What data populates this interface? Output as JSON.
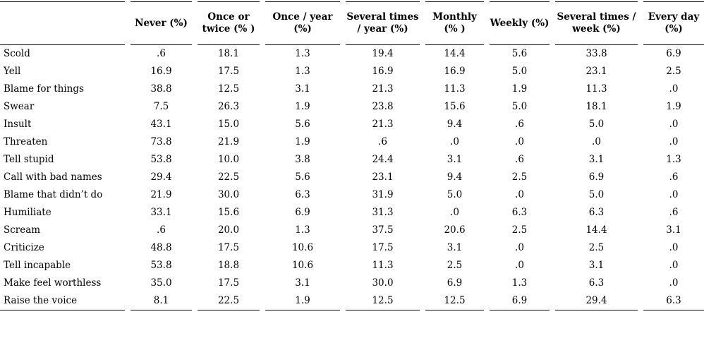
{
  "table": {
    "columns": [
      "",
      "Never (%)",
      "Once or twice (% )",
      "Once / year (%)",
      "Several times / year (%)",
      "Monthly (% )",
      "Weekly (%)",
      "Several times / week (%)",
      "Every day (%)"
    ],
    "rows": [
      {
        "label": "Scold",
        "values": [
          ".6",
          "18.1",
          "1.3",
          "19.4",
          "14.4",
          "5.6",
          "33.8",
          "6.9"
        ]
      },
      {
        "label": "Yell",
        "values": [
          "16.9",
          "17.5",
          "1.3",
          "16.9",
          "16.9",
          "5.0",
          "23.1",
          "2.5"
        ]
      },
      {
        "label": "Blame for things",
        "values": [
          "38.8",
          "12.5",
          "3.1",
          "21.3",
          "11.3",
          "1.9",
          "11.3",
          ".0"
        ]
      },
      {
        "label": "Swear",
        "values": [
          "7.5",
          "26.3",
          "1.9",
          "23.8",
          "15.6",
          "5.0",
          "18.1",
          "1.9"
        ]
      },
      {
        "label": "Insult",
        "values": [
          "43.1",
          "15.0",
          "5.6",
          "21.3",
          "9.4",
          ".6",
          "5.0",
          ".0"
        ]
      },
      {
        "label": "Threaten",
        "values": [
          "73.8",
          "21.9",
          "1.9",
          ".6",
          ".0",
          ".0",
          ".0",
          ".0"
        ]
      },
      {
        "label": "Tell stupid",
        "values": [
          "53.8",
          "10.0",
          "3.8",
          "24.4",
          "3.1",
          ".6",
          "3.1",
          "1.3"
        ]
      },
      {
        "label": "Call with bad names",
        "values": [
          "29.4",
          "22.5",
          "5.6",
          "23.1",
          "9.4",
          "2.5",
          "6.9",
          ".6"
        ]
      },
      {
        "label": "Blame that didn’t do",
        "values": [
          "21.9",
          "30.0",
          "6.3",
          "31.9",
          "5.0",
          ".0",
          "5.0",
          ".0"
        ]
      },
      {
        "label": "Humiliate",
        "values": [
          "33.1",
          "15.6",
          "6.9",
          "31.3",
          ".0",
          "6.3",
          "6.3",
          ".6"
        ]
      },
      {
        "label": "Scream",
        "values": [
          ".6",
          "20.0",
          "1.3",
          "37.5",
          "20.6",
          "2.5",
          "14.4",
          "3.1"
        ]
      },
      {
        "label": "Criticize",
        "values": [
          "48.8",
          "17.5",
          "10.6",
          "17.5",
          "3.1",
          ".0",
          "2.5",
          ".0"
        ]
      },
      {
        "label": "Tell incapable",
        "values": [
          "53.8",
          "18.8",
          "10.6",
          "11.3",
          "2.5",
          ".0",
          "3.1",
          ".0"
        ]
      },
      {
        "label": "Make feel worthless",
        "values": [
          "35.0",
          "17.5",
          "3.1",
          "30.0",
          "6.9",
          "1.3",
          "6.3",
          ".0"
        ]
      },
      {
        "label": "Raise the voice",
        "values": [
          "8.1",
          "22.5",
          "1.9",
          "12.5",
          "12.5",
          "6.9",
          "29.4",
          "6.3"
        ]
      }
    ]
  }
}
